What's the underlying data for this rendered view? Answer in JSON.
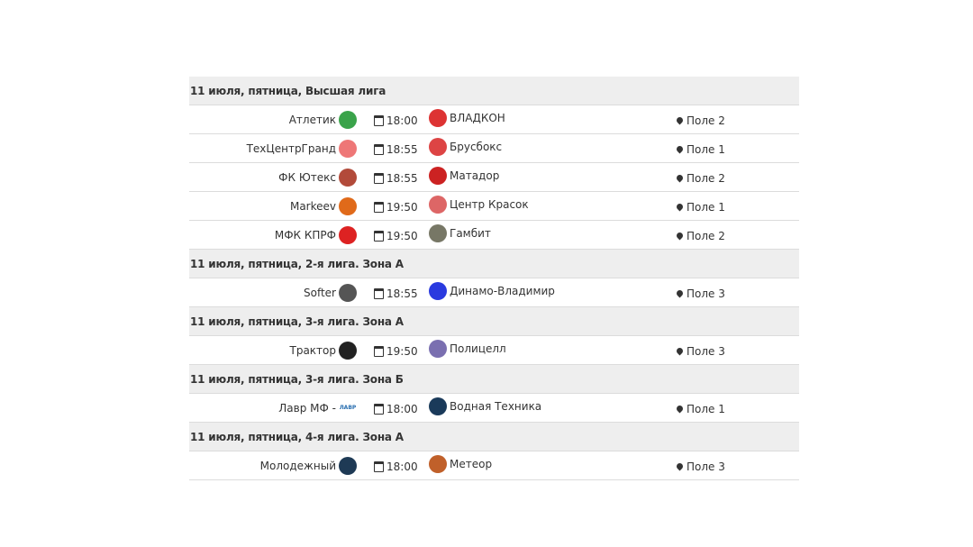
{
  "groups": [
    {
      "title": "11 июля, пятница, Высшая лига",
      "matches": [
        {
          "home": "Атлетик",
          "home_logo_color": "#3aa34a",
          "time": "18:00",
          "away": "ВЛАДКОН",
          "away_logo_color": "#d33",
          "place": "Поле 2"
        },
        {
          "home": "ТехЦентрГранд",
          "home_logo_color": "#e77",
          "time": "18:55",
          "away": "Брусбокс",
          "away_logo_color": "#d44",
          "place": "Поле 1"
        },
        {
          "home": "ФК Ютекс",
          "home_logo_color": "#b24a3a",
          "time": "18:55",
          "away": "Матадор",
          "away_logo_color": "#c22",
          "place": "Поле 2"
        },
        {
          "home": "Markeev",
          "home_logo_color": "#e06a1a",
          "time": "19:50",
          "away": "Центр Красок",
          "away_logo_color": "#d66",
          "place": "Поле 1"
        },
        {
          "home": "МФК КПРФ",
          "home_logo_color": "#d22",
          "time": "19:50",
          "away": "Гамбит",
          "away_logo_color": "#776",
          "place": "Поле 2"
        }
      ]
    },
    {
      "title": "11 июля, пятница, 2-я лига. Зона А",
      "matches": [
        {
          "home": "Softer",
          "home_logo_color": "#555",
          "time": "18:55",
          "away": "Динамо-Владимир",
          "away_logo_color": "#2a3adf",
          "place": "Поле 3"
        }
      ]
    },
    {
      "title": "11 июля, пятница, 3-я лига. Зона А",
      "matches": [
        {
          "home": "Трактор",
          "home_logo_color": "#222",
          "time": "19:50",
          "away": "Полицелл",
          "away_logo_color": "#7a6fb0",
          "place": "Поле 3"
        }
      ]
    },
    {
      "title": "11 июля, пятница, 3-я лига. Зона Б",
      "matches": [
        {
          "home": "Лавр МФ -",
          "home_logo_text": "ЛАВР",
          "home_logo_color": "#2a6fb0",
          "time": "18:00",
          "away": "Водная Техника",
          "away_logo_color": "#1a3a5a",
          "place": "Поле 1"
        }
      ]
    },
    {
      "title": "11 июля, пятница, 4-я лига. Зона А",
      "matches": [
        {
          "home": "Молодежный",
          "home_logo_color": "#1e3a55",
          "time": "18:00",
          "away": "Метеор",
          "away_logo_color": "#c0602a",
          "place": "Поле 3"
        }
      ]
    }
  ]
}
